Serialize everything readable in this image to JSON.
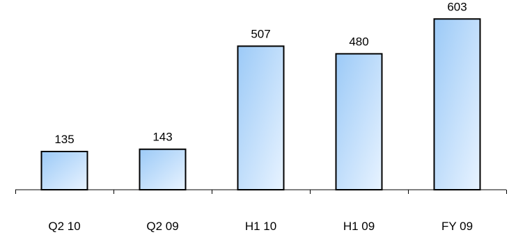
{
  "chart_data": {
    "type": "bar",
    "categories": [
      "Q2 10",
      "Q2 09",
      "H1 10",
      "H1 09",
      "FY 09"
    ],
    "values": [
      135,
      143,
      507,
      480,
      603
    ],
    "data_labels": [
      "135",
      "143",
      "507",
      "480",
      "603"
    ],
    "title": "",
    "xlabel": "",
    "ylabel": "",
    "ylim": [
      0,
      670
    ],
    "grid": false,
    "legend": "none",
    "colors": {
      "bar_fill_light": "#e8f3ff",
      "bar_fill_dark": "#9ccaf7",
      "bar_stroke": "#000000",
      "axis": "#000000"
    }
  }
}
